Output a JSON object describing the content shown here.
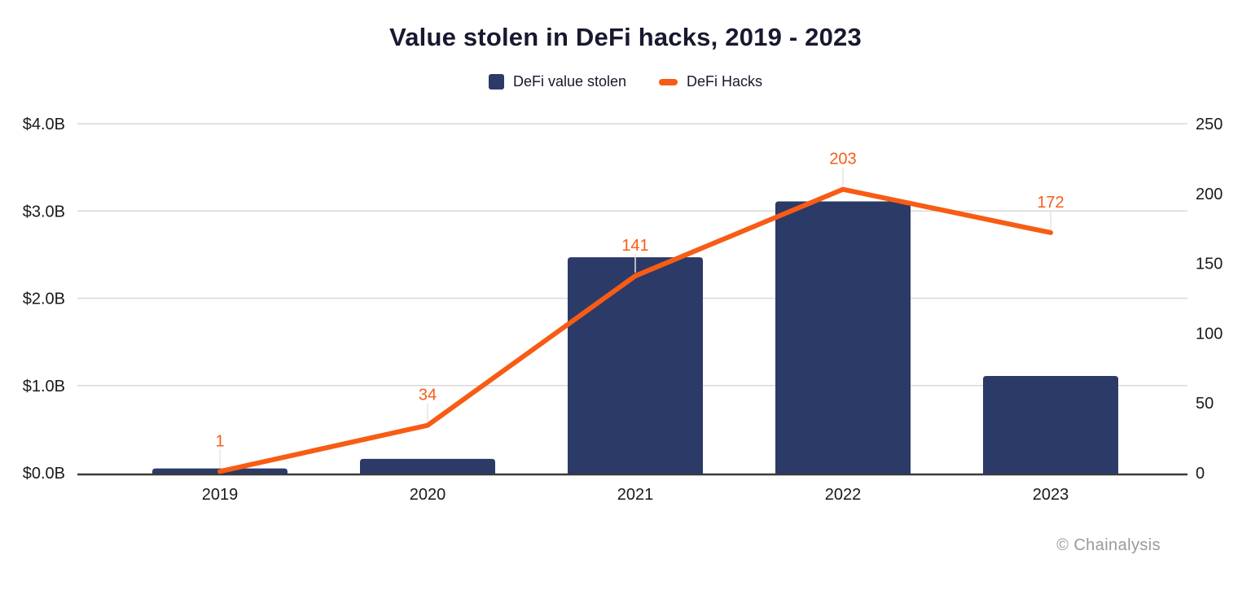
{
  "title": "Value stolen in DeFi hacks, 2019 - 2023",
  "legend": [
    {
      "label": "DeFi value stolen",
      "swatch": "square-icon",
      "color": "#2b3a67"
    },
    {
      "label": "DeFi Hacks",
      "swatch": "dash-icon",
      "color": "#f75c15"
    }
  ],
  "footer": {
    "credit": "© Chainalysis"
  },
  "colors": {
    "bar": "#2b3a67",
    "line": "#f75c15",
    "grid": "#d9d9d9",
    "axis": "#3a3a3a",
    "axis_text": "#1a1a1a",
    "title_text": "#18182f",
    "connector": "#e6e6e6",
    "credit_text": "#9a9a9a",
    "background": "#ffffff"
  },
  "chart_data": {
    "type": "bar",
    "subtype": "bar-and-line-combo",
    "title": "Value stolen in DeFi hacks, 2019 - 2023",
    "categories": [
      "2019",
      "2020",
      "2021",
      "2022",
      "2023"
    ],
    "series": [
      {
        "name": "DeFi value stolen",
        "type": "bar",
        "axis": "left",
        "unit": "USD billions",
        "values": [
          0.05,
          0.16,
          2.47,
          3.11,
          1.11
        ]
      },
      {
        "name": "DeFi Hacks",
        "type": "line",
        "axis": "right",
        "unit": "count",
        "values": [
          1,
          34,
          141,
          203,
          172
        ],
        "data_labels": [
          "1",
          "34",
          "141",
          "203",
          "172"
        ]
      }
    ],
    "left_axis": {
      "ticks": [
        "$4.0B",
        "$3.0B",
        "$2.0B",
        "$1.0B",
        "$0.0B"
      ],
      "tick_values": [
        4,
        3,
        2,
        1,
        0
      ],
      "min": 0,
      "max": 4
    },
    "right_axis": {
      "ticks": [
        "250",
        "200",
        "150",
        "100",
        "50",
        "0"
      ],
      "tick_values": [
        250,
        200,
        150,
        100,
        50,
        0
      ],
      "min": 0,
      "max": 250
    },
    "grid": true,
    "legend_position": "top",
    "xlabel": "",
    "ylabel_left": "",
    "ylabel_right": ""
  }
}
